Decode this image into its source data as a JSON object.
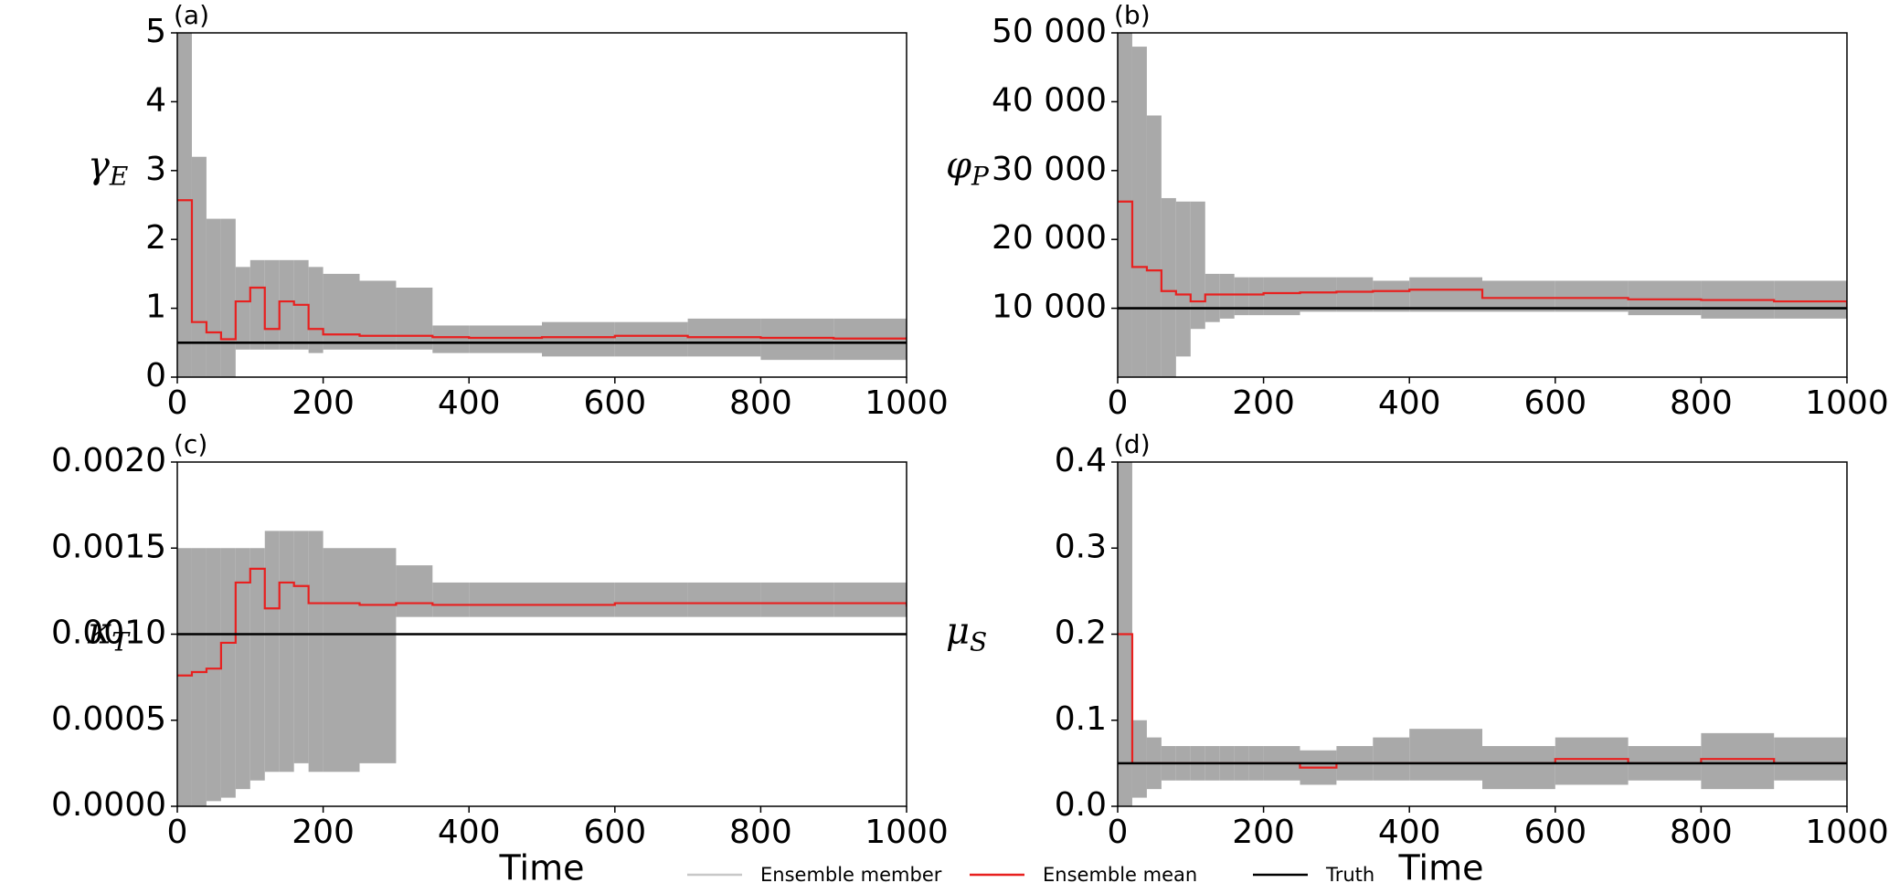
{
  "chart_data": [
    {
      "type": "line",
      "title": "(a)",
      "ylabel": {
        "symbol": "γ",
        "sub": "E"
      },
      "x": [
        0,
        20,
        40,
        60,
        80,
        100,
        120,
        140,
        160,
        180,
        200,
        250,
        300,
        350,
        400,
        500,
        600,
        700,
        800,
        900,
        1000
      ],
      "xlim": [
        0,
        1000
      ],
      "xticks": [
        0,
        200,
        400,
        600,
        800,
        1000
      ],
      "ylim": [
        0,
        5
      ],
      "yticks": [
        0,
        1,
        2,
        3,
        4,
        5
      ],
      "series": [
        {
          "name": "Ensemble member",
          "color": "#a9a9a9",
          "low": [
            0,
            0,
            0,
            0,
            0.4,
            0.4,
            0.4,
            0.4,
            0.4,
            0.35,
            0.4,
            0.4,
            0.4,
            0.35,
            0.35,
            0.3,
            0.3,
            0.3,
            0.25,
            0.25,
            0.25
          ],
          "high": [
            5,
            3.2,
            2.3,
            2.3,
            1.6,
            1.7,
            1.7,
            1.7,
            1.7,
            1.6,
            1.5,
            1.4,
            1.3,
            0.75,
            0.75,
            0.8,
            0.8,
            0.85,
            0.85,
            0.85,
            0.85
          ]
        },
        {
          "name": "Ensemble mean",
          "color": "#e8201f",
          "values": [
            2.57,
            0.8,
            0.65,
            0.55,
            1.1,
            1.3,
            0.7,
            1.1,
            1.05,
            0.7,
            0.62,
            0.6,
            0.6,
            0.58,
            0.57,
            0.58,
            0.6,
            0.58,
            0.57,
            0.56,
            0.58
          ]
        },
        {
          "name": "Truth",
          "color": "#000000",
          "values": [
            0.5,
            0.5,
            0.5,
            0.5,
            0.5,
            0.5,
            0.5,
            0.5,
            0.5,
            0.5,
            0.5,
            0.5,
            0.5,
            0.5,
            0.5,
            0.5,
            0.5,
            0.5,
            0.5,
            0.5,
            0.5
          ]
        }
      ]
    },
    {
      "type": "line",
      "title": "(b)",
      "ylabel": {
        "symbol": "φ",
        "sub": "P"
      },
      "x": [
        0,
        20,
        40,
        60,
        80,
        100,
        120,
        140,
        160,
        180,
        200,
        250,
        300,
        350,
        400,
        500,
        600,
        700,
        800,
        900,
        1000
      ],
      "xlim": [
        0,
        1000
      ],
      "xticks": [
        0,
        200,
        400,
        600,
        800,
        1000
      ],
      "ylim": [
        0,
        50000
      ],
      "yticks": [
        {
          "value": 10000,
          "label": "10 000"
        },
        {
          "value": 20000,
          "label": "20 000"
        },
        {
          "value": 30000,
          "label": "30 000"
        },
        {
          "value": 40000,
          "label": "40 000"
        },
        {
          "value": 50000,
          "label": "50 000"
        }
      ],
      "series": [
        {
          "name": "Ensemble member",
          "color": "#a9a9a9",
          "low": [
            0,
            0,
            0,
            0,
            3000,
            7000,
            8000,
            8500,
            9000,
            9000,
            9000,
            9500,
            9500,
            9500,
            9500,
            9500,
            9500,
            9000,
            8500,
            8500,
            8500
          ],
          "high": [
            50000,
            48000,
            38000,
            26000,
            25500,
            25500,
            15000,
            15000,
            14500,
            14500,
            14500,
            14500,
            14500,
            14000,
            14500,
            14000,
            14000,
            14000,
            14000,
            14000,
            14500
          ]
        },
        {
          "name": "Ensemble mean",
          "color": "#e8201f",
          "values": [
            25500,
            16000,
            15500,
            12500,
            12000,
            11000,
            12000,
            12000,
            12000,
            12000,
            12200,
            12300,
            12400,
            12500,
            12700,
            11500,
            11500,
            11300,
            11200,
            11000,
            10200
          ]
        },
        {
          "name": "Truth",
          "color": "#000000",
          "values": [
            10000,
            10000,
            10000,
            10000,
            10000,
            10000,
            10000,
            10000,
            10000,
            10000,
            10000,
            10000,
            10000,
            10000,
            10000,
            10000,
            10000,
            10000,
            10000,
            10000,
            10000
          ]
        }
      ]
    },
    {
      "type": "line",
      "title": "(c)",
      "ylabel": {
        "symbol": "κ",
        "sub": "T"
      },
      "xlabel": "Time",
      "x": [
        0,
        20,
        40,
        60,
        80,
        100,
        120,
        140,
        160,
        180,
        200,
        250,
        300,
        350,
        400,
        500,
        600,
        700,
        800,
        900,
        1000
      ],
      "xlim": [
        0,
        1000
      ],
      "xticks": [
        0,
        200,
        400,
        600,
        800,
        1000
      ],
      "ylim": [
        0,
        0.002
      ],
      "yticks": [
        {
          "value": 0,
          "label": "0.0000"
        },
        {
          "value": 0.0005,
          "label": "0.0005"
        },
        {
          "value": 0.001,
          "label": "0.0010"
        },
        {
          "value": 0.0015,
          "label": "0.0015"
        },
        {
          "value": 0.002,
          "label": "0.0020"
        }
      ],
      "series": [
        {
          "name": "Ensemble member",
          "color": "#a9a9a9",
          "low": [
            0,
            0,
            3e-05,
            5e-05,
            0.0001,
            0.00015,
            0.0002,
            0.0002,
            0.00025,
            0.0002,
            0.0002,
            0.00025,
            0.0011,
            0.0011,
            0.0011,
            0.0011,
            0.0011,
            0.0011,
            0.0011,
            0.0011,
            0.0011
          ],
          "high": [
            0.0015,
            0.0015,
            0.0015,
            0.0015,
            0.0015,
            0.0015,
            0.0016,
            0.0016,
            0.0016,
            0.0016,
            0.0015,
            0.0015,
            0.0014,
            0.0013,
            0.0013,
            0.0013,
            0.0013,
            0.0013,
            0.0013,
            0.0013,
            0.0013
          ]
        },
        {
          "name": "Ensemble mean",
          "color": "#e8201f",
          "values": [
            0.00076,
            0.00078,
            0.0008,
            0.00095,
            0.0013,
            0.00138,
            0.00115,
            0.0013,
            0.00128,
            0.00118,
            0.00118,
            0.00117,
            0.00118,
            0.00117,
            0.00117,
            0.00117,
            0.00118,
            0.00118,
            0.00118,
            0.00118,
            0.00116
          ]
        },
        {
          "name": "Truth",
          "color": "#000000",
          "values": [
            0.001,
            0.001,
            0.001,
            0.001,
            0.001,
            0.001,
            0.001,
            0.001,
            0.001,
            0.001,
            0.001,
            0.001,
            0.001,
            0.001,
            0.001,
            0.001,
            0.001,
            0.001,
            0.001,
            0.001,
            0.001
          ]
        }
      ]
    },
    {
      "type": "line",
      "title": "(d)",
      "ylabel": {
        "symbol": "μ",
        "sub": "S"
      },
      "xlabel": "Time",
      "x": [
        0,
        20,
        40,
        60,
        80,
        100,
        120,
        140,
        160,
        180,
        200,
        250,
        300,
        350,
        400,
        500,
        600,
        700,
        800,
        900,
        1000
      ],
      "xlim": [
        0,
        1000
      ],
      "xticks": [
        0,
        200,
        400,
        600,
        800,
        1000
      ],
      "ylim": [
        0,
        0.4
      ],
      "yticks": [
        {
          "value": 0,
          "label": "0.0"
        },
        0.1,
        0.2,
        0.3,
        0.4
      ],
      "series": [
        {
          "name": "Ensemble member",
          "color": "#a9a9a9",
          "low": [
            0,
            0.01,
            0.02,
            0.03,
            0.03,
            0.03,
            0.03,
            0.03,
            0.03,
            0.03,
            0.03,
            0.025,
            0.03,
            0.03,
            0.03,
            0.02,
            0.025,
            0.03,
            0.02,
            0.03,
            0.02
          ],
          "high": [
            0.4,
            0.1,
            0.08,
            0.07,
            0.07,
            0.07,
            0.07,
            0.07,
            0.07,
            0.07,
            0.07,
            0.065,
            0.07,
            0.08,
            0.09,
            0.07,
            0.08,
            0.07,
            0.085,
            0.08,
            0.08
          ]
        },
        {
          "name": "Ensemble mean",
          "color": "#e8201f",
          "values": [
            0.2,
            0.05,
            0.05,
            0.05,
            0.05,
            0.05,
            0.05,
            0.05,
            0.05,
            0.05,
            0.05,
            0.045,
            0.05,
            0.05,
            0.05,
            0.05,
            0.055,
            0.05,
            0.055,
            0.05,
            0.05
          ]
        },
        {
          "name": "Truth",
          "color": "#000000",
          "values": [
            0.05,
            0.05,
            0.05,
            0.05,
            0.05,
            0.05,
            0.05,
            0.05,
            0.05,
            0.05,
            0.05,
            0.05,
            0.05,
            0.05,
            0.05,
            0.05,
            0.05,
            0.05,
            0.05,
            0.05,
            0.05
          ]
        }
      ]
    }
  ]
}
